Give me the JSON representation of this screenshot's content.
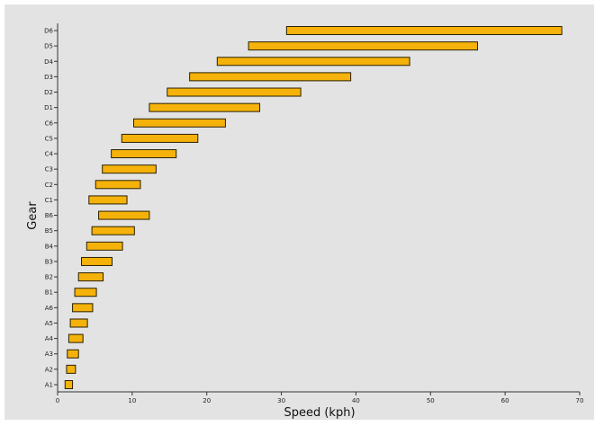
{
  "chart_data": {
    "type": "bar",
    "orientation": "horizontal",
    "floating": true,
    "title": "",
    "xlabel": "Speed (kph)",
    "ylabel": "Gear",
    "xlim": [
      0,
      70
    ],
    "xticks": [
      0,
      10,
      20,
      30,
      40,
      50,
      60,
      70
    ],
    "grid": false,
    "categories": [
      "A1",
      "A2",
      "A3",
      "A4",
      "A5",
      "A6",
      "B1",
      "B2",
      "B3",
      "B4",
      "B5",
      "B6",
      "C1",
      "C2",
      "C3",
      "C4",
      "C5",
      "C6",
      "D1",
      "D2",
      "D3",
      "D4",
      "D5",
      "D6"
    ],
    "ranges": [
      [
        1.0,
        2.0
      ],
      [
        1.2,
        2.4
      ],
      [
        1.3,
        2.8
      ],
      [
        1.5,
        3.4
      ],
      [
        1.7,
        4.0
      ],
      [
        2.0,
        4.7
      ],
      [
        2.3,
        5.2
      ],
      [
        2.8,
        6.1
      ],
      [
        3.2,
        7.3
      ],
      [
        3.9,
        8.7
      ],
      [
        4.6,
        10.3
      ],
      [
        5.5,
        12.3
      ],
      [
        4.2,
        9.3
      ],
      [
        5.1,
        11.1
      ],
      [
        6.0,
        13.2
      ],
      [
        7.2,
        15.9
      ],
      [
        8.6,
        18.8
      ],
      [
        10.2,
        22.5
      ],
      [
        12.3,
        27.1
      ],
      [
        14.7,
        32.6
      ],
      [
        17.7,
        39.3
      ],
      [
        21.4,
        47.2
      ],
      [
        25.6,
        56.3
      ],
      [
        30.7,
        67.6
      ]
    ],
    "bar_color": "#f5b20a",
    "background_color": "#e3e3e3"
  }
}
